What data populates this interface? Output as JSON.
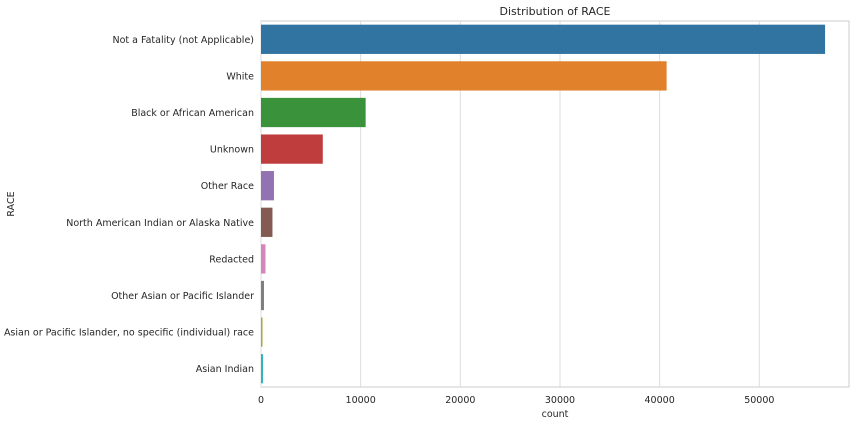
{
  "chart_data": {
    "type": "bar",
    "orientation": "horizontal",
    "title": "Distribution of RACE",
    "xlabel": "count",
    "ylabel": "RACE",
    "xlim": [
      0,
      59000
    ],
    "xticks": [
      0,
      10000,
      20000,
      30000,
      40000,
      50000
    ],
    "xtick_labels": [
      "0",
      "10000",
      "20000",
      "30000",
      "40000",
      "50000"
    ],
    "grid": true,
    "categories": [
      "Not a Fatality (not Applicable)",
      "White",
      "Black or African American",
      "Unknown",
      "Other Race",
      "North American Indian or Alaska Native",
      "Redacted",
      "Other Asian or Pacific Islander",
      "Asian or Pacific Islander, no specific (individual) race",
      "Asian Indian"
    ],
    "values": [
      56600,
      40700,
      10500,
      6200,
      1300,
      1150,
      450,
      300,
      150,
      200
    ],
    "colors": [
      "#3274a1",
      "#e1812c",
      "#3a923a",
      "#c03d3e",
      "#9372b2",
      "#845b53",
      "#d684bd",
      "#7f7f7f",
      "#a9aa35",
      "#2eb4c3"
    ]
  }
}
